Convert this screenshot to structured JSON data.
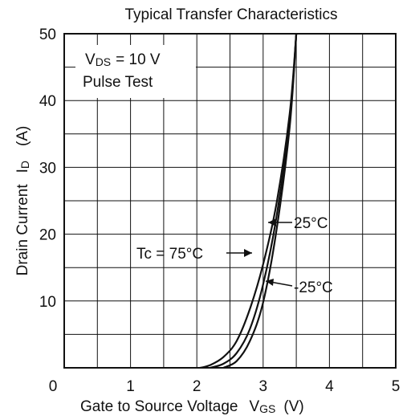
{
  "chart_data": {
    "type": "line",
    "title": "Typical Transfer Characteristics",
    "xlabel": {
      "main": "Gate to Source Voltage",
      "symbol": "V",
      "subscript": "GS",
      "unit": "(V)"
    },
    "ylabel": {
      "main": "Drain Current",
      "symbol": "I",
      "subscript": "D",
      "unit": "(A)"
    },
    "xlim": [
      0,
      5
    ],
    "ylim": [
      0,
      50
    ],
    "x_ticks": [
      "0",
      "1",
      "2",
      "3",
      "4",
      "5"
    ],
    "y_ticks": [
      "10",
      "20",
      "30",
      "40",
      "50"
    ],
    "grid": true,
    "conditions": {
      "vds_symbol": "V",
      "vds_subscript": "DS",
      "vds_value": "= 10 V",
      "pulse": "Pulse Test"
    },
    "series": [
      {
        "name": "Tc = 75°C",
        "points": [
          [
            2.05,
            0
          ],
          [
            2.2,
            0.4
          ],
          [
            2.4,
            1.6
          ],
          [
            2.6,
            4
          ],
          [
            2.8,
            8.8
          ],
          [
            3.0,
            15.5
          ],
          [
            3.2,
            24.5
          ],
          [
            3.4,
            38
          ],
          [
            3.5,
            50
          ]
        ]
      },
      {
        "name": "25°C",
        "points": [
          [
            2.2,
            0
          ],
          [
            2.4,
            0.6
          ],
          [
            2.6,
            2.2
          ],
          [
            2.8,
            5.8
          ],
          [
            3.0,
            12.5
          ],
          [
            3.2,
            22.5
          ],
          [
            3.4,
            37
          ],
          [
            3.5,
            50
          ]
        ]
      },
      {
        "name": "-25°C",
        "points": [
          [
            2.4,
            0
          ],
          [
            2.6,
            1
          ],
          [
            2.8,
            4
          ],
          [
            3.0,
            9.8
          ],
          [
            3.2,
            20.5
          ],
          [
            3.4,
            36
          ],
          [
            3.5,
            50
          ]
        ]
      }
    ],
    "annotations": [
      {
        "text": "25°C",
        "series": "25°C"
      },
      {
        "text": "Tc = 75°C",
        "series": "Tc = 75°C"
      },
      {
        "text": "-25°C",
        "series": "-25°C"
      }
    ]
  }
}
